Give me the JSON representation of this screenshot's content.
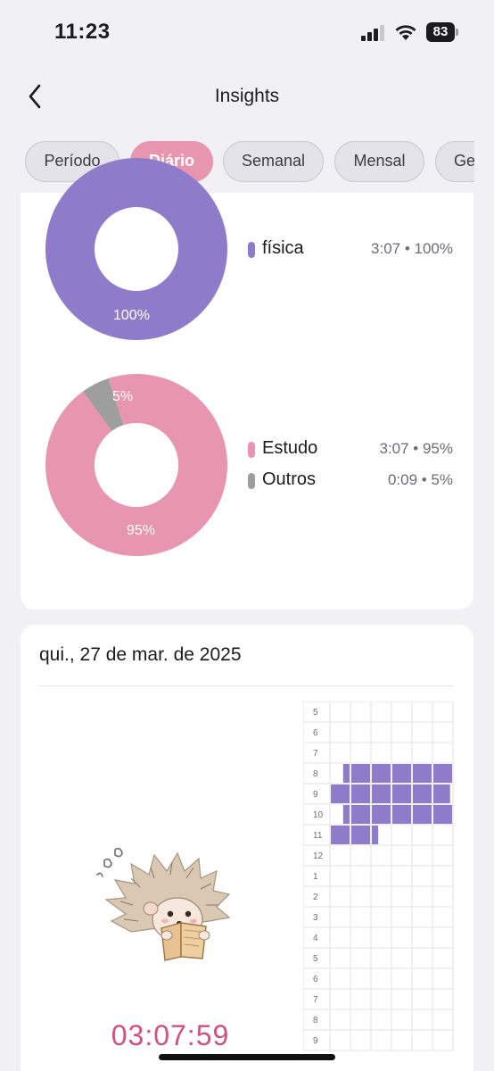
{
  "status_bar": {
    "time": "11:23",
    "battery": "83"
  },
  "nav": {
    "title": "Insights"
  },
  "tabs": [
    {
      "label": "Período",
      "active": false
    },
    {
      "label": "Diário",
      "active": true
    },
    {
      "label": "Semanal",
      "active": false
    },
    {
      "label": "Mensal",
      "active": false
    },
    {
      "label": "Ge",
      "active": false
    }
  ],
  "chart_data": [
    {
      "type": "pie",
      "variant": "donut",
      "slices": [
        {
          "label": "física",
          "value": 100,
          "time": "3:07",
          "percent_label": "100%",
          "legend_value": "3:07 • 100%",
          "color": "#8e7bc9"
        }
      ]
    },
    {
      "type": "pie",
      "variant": "donut",
      "slices": [
        {
          "label": "Estudo",
          "value": 95,
          "time": "3:07",
          "percent_label": "95%",
          "legend_value": "3:07 • 95%",
          "color": "#e896b0"
        },
        {
          "label": "Outros",
          "value": 5,
          "time": "0:09",
          "percent_label": "5%",
          "legend_value": "0:09 • 5%",
          "color": "#9e9e9e"
        }
      ]
    },
    {
      "type": "heatmap",
      "hour_labels": [
        "5",
        "6",
        "7",
        "8",
        "9",
        "10",
        "11",
        "12",
        "1",
        "2",
        "3",
        "4",
        "5",
        "6",
        "7",
        "8",
        "9"
      ],
      "columns": 6,
      "fill_color": "#8e7bc9",
      "filled": [
        {
          "row": 3,
          "from": 0.6,
          "to": 6
        },
        {
          "row": 4,
          "from": 0,
          "to": 5.9
        },
        {
          "row": 5,
          "from": 0.6,
          "to": 6
        },
        {
          "row": 6,
          "from": 0,
          "to": 2.4
        }
      ]
    }
  ],
  "day_card": {
    "date": "qui., 27 de mar. de 2025",
    "timer": "03:07:59"
  },
  "icons": {
    "back": "chevron-left-icon",
    "signal": "cellular-signal-icon",
    "wifi": "wifi-icon",
    "battery": "battery-icon",
    "mascot": "hedgehog-reading-illustration"
  }
}
